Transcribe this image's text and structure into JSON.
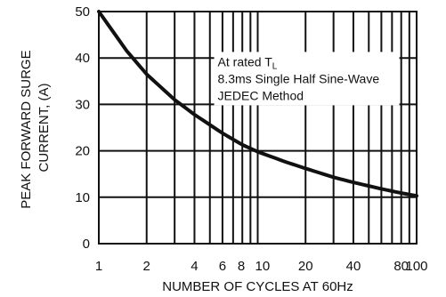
{
  "chart_data": {
    "type": "line",
    "title": "",
    "xlabel": "NUMBER OF CYCLES AT 60Hz",
    "ylabel_lines": [
      "PEAK FORWARD SURGE",
      "CURRENT, (A)"
    ],
    "x_scale": "log",
    "xlim": [
      1,
      100
    ],
    "ylim": [
      0,
      50
    ],
    "x_ticks": [
      1,
      2,
      4,
      6,
      8,
      10,
      20,
      40,
      80,
      100
    ],
    "x_tick_labels": [
      "1",
      "2",
      "4",
      "6",
      "8",
      "10",
      "20",
      "40",
      "80",
      "100"
    ],
    "y_ticks": [
      0,
      10,
      20,
      30,
      40,
      50
    ],
    "y_tick_labels": [
      "0",
      "10",
      "20",
      "30",
      "40",
      "50"
    ],
    "grid": true,
    "annotation_lines": [
      "At rated T",
      "8.3ms Single Half Sine-Wave",
      "JEDEC Method"
    ],
    "annotation_subscript": "L",
    "series": [
      {
        "x": [
          1,
          1.5,
          2,
          3,
          4,
          6,
          8,
          10,
          15,
          20,
          30,
          40,
          60,
          80,
          100
        ],
        "values": [
          50,
          41.5,
          36.5,
          31,
          27.8,
          23.8,
          21.3,
          19.8,
          17.6,
          16.2,
          14.3,
          13.2,
          11.8,
          10.9,
          10.3
        ]
      }
    ],
    "colors": {
      "curve": "#111111",
      "grid": "#111111",
      "background": "#ffffff"
    }
  }
}
